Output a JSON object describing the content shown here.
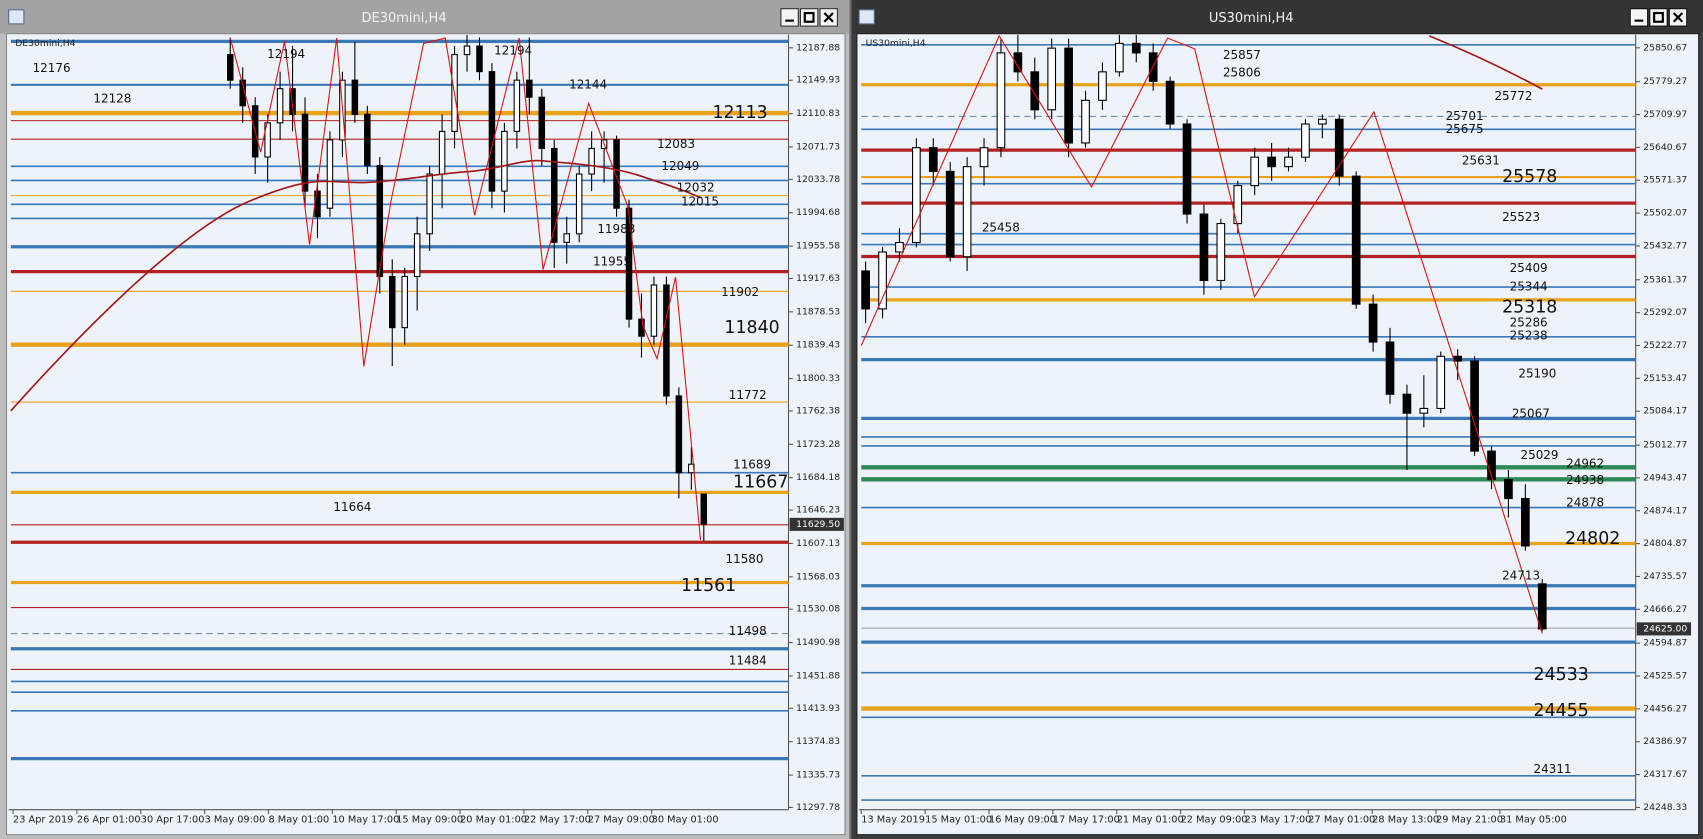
{
  "chart_data": [
    {
      "type": "candlestick",
      "title": "DE30mini,H4",
      "symbol_label": "DE30mini,H4",
      "ylim": [
        11295.2,
        12203.2
      ],
      "yticks": [
        12187.88,
        12149.93,
        12110.83,
        12071.73,
        12033.78,
        11994.68,
        11955.58,
        11917.63,
        11878.53,
        11839.43,
        11800.33,
        11762.38,
        11723.28,
        11684.18,
        11646.23,
        11607.13,
        11568.03,
        11530.08,
        11490.98,
        11451.88,
        11413.93,
        11374.83,
        11335.73,
        11297.78
      ],
      "current_price": {
        "value": 11629.5,
        "label": "11629.50"
      },
      "x_labels": [
        "23 Apr 2019",
        "26 Apr 01:00",
        "30 Apr 17:00",
        "3 May 09:00",
        "8 May 01:00",
        "10 May 17:00",
        "15 May 09:00",
        "20 May 01:00",
        "22 May 17:00",
        "27 May 09:00",
        "30 May 01:00"
      ],
      "levels": [
        {
          "value": 12195.5,
          "color": "#3a78b8",
          "width": 3
        },
        {
          "value": 12144.6,
          "color": "#3a78b8",
          "width": 2
        },
        {
          "value": 12111.5,
          "color": "#e8a21c",
          "width": 4
        },
        {
          "value": 12102.6,
          "color": "#b22222",
          "width": 1
        },
        {
          "value": 12080.9,
          "color": "#b22222",
          "width": 1
        },
        {
          "value": 12049,
          "color": "#3a78b8",
          "width": 1.5
        },
        {
          "value": 12032.5,
          "color": "#3a78b8",
          "width": 1.5
        },
        {
          "value": 12014.7,
          "color": "#e8a21c",
          "width": 1
        },
        {
          "value": 12004.5,
          "color": "#3a78b8",
          "width": 1.5
        },
        {
          "value": 11988,
          "color": "#3a78b8",
          "width": 1.5
        },
        {
          "value": 11954.8,
          "color": "#3a78b8",
          "width": 3
        },
        {
          "value": 11925.6,
          "color": "#b22222",
          "width": 3
        },
        {
          "value": 11902.6,
          "color": "#e8a21c",
          "width": 1
        },
        {
          "value": 11840,
          "color": "#e8a21c",
          "width": 4
        },
        {
          "value": 11772.8,
          "color": "#e8a21c",
          "width": 1
        },
        {
          "value": 11690,
          "color": "#3a78b8",
          "width": 1.5
        },
        {
          "value": 11667,
          "color": "#e8a21c",
          "width": 3
        },
        {
          "value": 11629,
          "color": "#b22222",
          "width": 1
        },
        {
          "value": 11608.5,
          "color": "#b22222",
          "width": 3
        },
        {
          "value": 11561.4,
          "color": "#e8a21c",
          "width": 3
        },
        {
          "value": 11532,
          "color": "#b22222",
          "width": 1
        },
        {
          "value": 11501.5,
          "color": "#6a8db5",
          "width": 1,
          "style": "dashed"
        },
        {
          "value": 11483.7,
          "color": "#3a78b8",
          "width": 3
        },
        {
          "value": 11459.5,
          "color": "#b22222",
          "width": 1
        },
        {
          "value": 11445.5,
          "color": "#3a78b8",
          "width": 1.5
        },
        {
          "value": 11432.8,
          "color": "#3a78b8",
          "width": 1.5
        },
        {
          "value": 11411,
          "color": "#3a78b8",
          "width": 1.5
        },
        {
          "value": 11355,
          "color": "#3a78b8",
          "width": 3
        }
      ],
      "labels": [
        12176,
        12128,
        12144,
        12194,
        12194,
        12083,
        12049,
        12032,
        12015,
        11988,
        11955,
        11902,
        11772,
        11689,
        11664,
        11580,
        11498,
        11484
      ],
      "major_labels": [
        12113,
        11840,
        11667,
        11561
      ],
      "open": [
        12180,
        12150,
        12120,
        12060,
        12100,
        12140,
        12110,
        12020,
        12000,
        12080,
        12150,
        12110,
        12050,
        11920,
        11860,
        11920,
        11970,
        12040,
        12090,
        12180,
        12190,
        12160,
        12020,
        12090,
        12150,
        12130,
        12070,
        11960,
        11970,
        12040,
        12070,
        12080,
        12000,
        11870,
        11850,
        11910,
        11780,
        11690,
        11665
      ],
      "high": [
        12200,
        12165,
        12130,
        12110,
        12160,
        12190,
        12130,
        12040,
        12090,
        12160,
        12195,
        12120,
        12060,
        11940,
        11930,
        11990,
        12050,
        12110,
        12190,
        12203,
        12200,
        12170,
        12100,
        12160,
        12200,
        12140,
        12080,
        11990,
        12050,
        12090,
        12090,
        12085,
        12010,
        11900,
        11920,
        11920,
        11790,
        11720,
        11665
      ],
      "low": [
        12140,
        12100,
        12040,
        12030,
        12080,
        12090,
        12000,
        11965,
        11990,
        12060,
        12100,
        12040,
        11900,
        11815,
        11840,
        11880,
        11950,
        12000,
        12070,
        12160,
        12150,
        12000,
        11995,
        12070,
        12110,
        12050,
        11930,
        11935,
        11960,
        12020,
        12030,
        11990,
        11860,
        11825,
        11840,
        11770,
        11660,
        11670,
        11610
      ],
      "close": [
        12150,
        12120,
        12060,
        12100,
        12140,
        12110,
        12020,
        11990,
        12080,
        12150,
        12110,
        12050,
        11920,
        11860,
        11920,
        11970,
        12040,
        12090,
        12180,
        12190,
        12160,
        12020,
        12090,
        12150,
        12130,
        12070,
        11960,
        11970,
        12040,
        12070,
        12080,
        12000,
        11870,
        11850,
        11910,
        11780,
        11690,
        11700,
        11630
      ]
    },
    {
      "type": "candlestick",
      "title": "US30mini,H4",
      "symbol_label": "US30mini,H4",
      "ylim": [
        24243.7,
        25878.2
      ],
      "yticks": [
        25850.67,
        25779.27,
        25709.97,
        25640.67,
        25571.37,
        25502.07,
        25432.77,
        25361.37,
        25292.07,
        25222.77,
        25153.47,
        25084.17,
        25012.77,
        24943.47,
        24874.17,
        24804.87,
        24735.57,
        24666.27,
        24594.87,
        24525.57,
        24456.27,
        24386.97,
        24317.67,
        24248.33
      ],
      "current_price": {
        "value": 24625,
        "label": "24625.00"
      },
      "x_labels": [
        "13 May 2019",
        "15 May 01:00",
        "16 May 09:00",
        "17 May 17:00",
        "21 May 01:00",
        "22 May 09:00",
        "23 May 17:00",
        "27 May 01:00",
        "28 May 13:00",
        "29 May 21:00",
        "31 May 05:00"
      ],
      "levels": [
        {
          "value": 25857,
          "color": "#3a78b8",
          "width": 1.5
        },
        {
          "value": 25772.7,
          "color": "#e8a21c",
          "width": 3
        },
        {
          "value": 25706,
          "color": "#6a8db5",
          "width": 1,
          "style": "dashed"
        },
        {
          "value": 25678.7,
          "color": "#3a78b8",
          "width": 1.5
        },
        {
          "value": 25635,
          "color": "#b22222",
          "width": 3
        },
        {
          "value": 25578,
          "color": "#e8a21c",
          "width": 2
        },
        {
          "value": 25564,
          "color": "#3a78b8",
          "width": 1.5
        },
        {
          "value": 25523,
          "color": "#b22222",
          "width": 3
        },
        {
          "value": 25458.7,
          "color": "#3a78b8",
          "width": 1.5
        },
        {
          "value": 25435.8,
          "color": "#3a78b8",
          "width": 1.5
        },
        {
          "value": 25410.5,
          "color": "#b22222",
          "width": 3
        },
        {
          "value": 25346,
          "color": "#3a78b8",
          "width": 1.5
        },
        {
          "value": 25318.9,
          "color": "#e8a21c",
          "width": 3
        },
        {
          "value": 25241,
          "color": "#3a78b8",
          "width": 1.5
        },
        {
          "value": 25193,
          "color": "#3a78b8",
          "width": 3
        },
        {
          "value": 25069,
          "color": "#3a78b8",
          "width": 3
        },
        {
          "value": 25030,
          "color": "#3a78b8",
          "width": 1.5
        },
        {
          "value": 25011,
          "color": "#3a78b8",
          "width": 1.5
        },
        {
          "value": 24965.9,
          "color": "#2e8b57",
          "width": 4
        },
        {
          "value": 24940.6,
          "color": "#2e8b57",
          "width": 4
        },
        {
          "value": 24881,
          "color": "#3a78b8",
          "width": 1.5
        },
        {
          "value": 24805,
          "color": "#e8a21c",
          "width": 3
        },
        {
          "value": 24716,
          "color": "#3a78b8",
          "width": 3
        },
        {
          "value": 24668,
          "color": "#3a78b8",
          "width": 3
        },
        {
          "value": 24626.6,
          "color": "#999999",
          "width": 1
        },
        {
          "value": 24597,
          "color": "#3a78b8",
          "width": 3
        },
        {
          "value": 24532.6,
          "color": "#3a78b8",
          "width": 1.5
        },
        {
          "value": 24457,
          "color": "#e8a21c",
          "width": 4
        },
        {
          "value": 24438.5,
          "color": "#3a78b8",
          "width": 1.5
        },
        {
          "value": 24315,
          "color": "#3a78b8",
          "width": 1.5
        },
        {
          "value": 24264,
          "color": "#3a78b8",
          "width": 1.5
        }
      ],
      "labels": [
        25857,
        25806,
        25772,
        25701,
        25675,
        25631,
        25523,
        25458,
        25409,
        25344,
        25286,
        25238,
        25190,
        25067,
        25029,
        24962,
        24938,
        24878,
        24713,
        24311
      ],
      "major_labels": [
        25578,
        25318,
        24802,
        24533,
        24455
      ],
      "open": [
        25380,
        25300,
        25420,
        25440,
        25640,
        25590,
        25410,
        25600,
        25640,
        25840,
        25800,
        25720,
        25850,
        25650,
        25740,
        25800,
        25860,
        25840,
        25780,
        25690,
        25500,
        25360,
        25480,
        25560,
        25620,
        25600,
        25620,
        25690,
        25700,
        25580,
        25310,
        25230,
        25120,
        25080,
        25090,
        25200,
        25190,
        25000,
        24940,
        24900,
        24720
      ],
      "high": [
        25400,
        25430,
        25470,
        25660,
        25660,
        25610,
        25620,
        25660,
        25870,
        25878,
        25830,
        25870,
        25870,
        25760,
        25820,
        25878,
        25878,
        25860,
        25790,
        25700,
        25520,
        25490,
        25570,
        25640,
        25650,
        25640,
        25700,
        25710,
        25710,
        25590,
        25330,
        25260,
        25140,
        25160,
        25210,
        25215,
        25200,
        25010,
        24960,
        24930,
        24730
      ],
      "low": [
        25270,
        25280,
        25400,
        25430,
        25560,
        25400,
        25380,
        25560,
        25620,
        25780,
        25700,
        25700,
        25620,
        25640,
        25720,
        25790,
        25820,
        25760,
        25680,
        25480,
        25330,
        25340,
        25460,
        25540,
        25570,
        25590,
        25610,
        25660,
        25560,
        25300,
        25210,
        25100,
        24960,
        25050,
        25080,
        25150,
        24990,
        24920,
        24860,
        24790,
        24620
      ],
      "close": [
        25300,
        25420,
        25440,
        25640,
        25590,
        25410,
        25600,
        25640,
        25840,
        25800,
        25720,
        25850,
        25650,
        25740,
        25800,
        25860,
        25840,
        25780,
        25690,
        25500,
        25360,
        25480,
        25560,
        25620,
        25600,
        25620,
        25690,
        25700,
        25580,
        25310,
        25230,
        25120,
        25080,
        25090,
        25200,
        25190,
        25000,
        24940,
        24900,
        24800,
        24625
      ]
    }
  ]
}
